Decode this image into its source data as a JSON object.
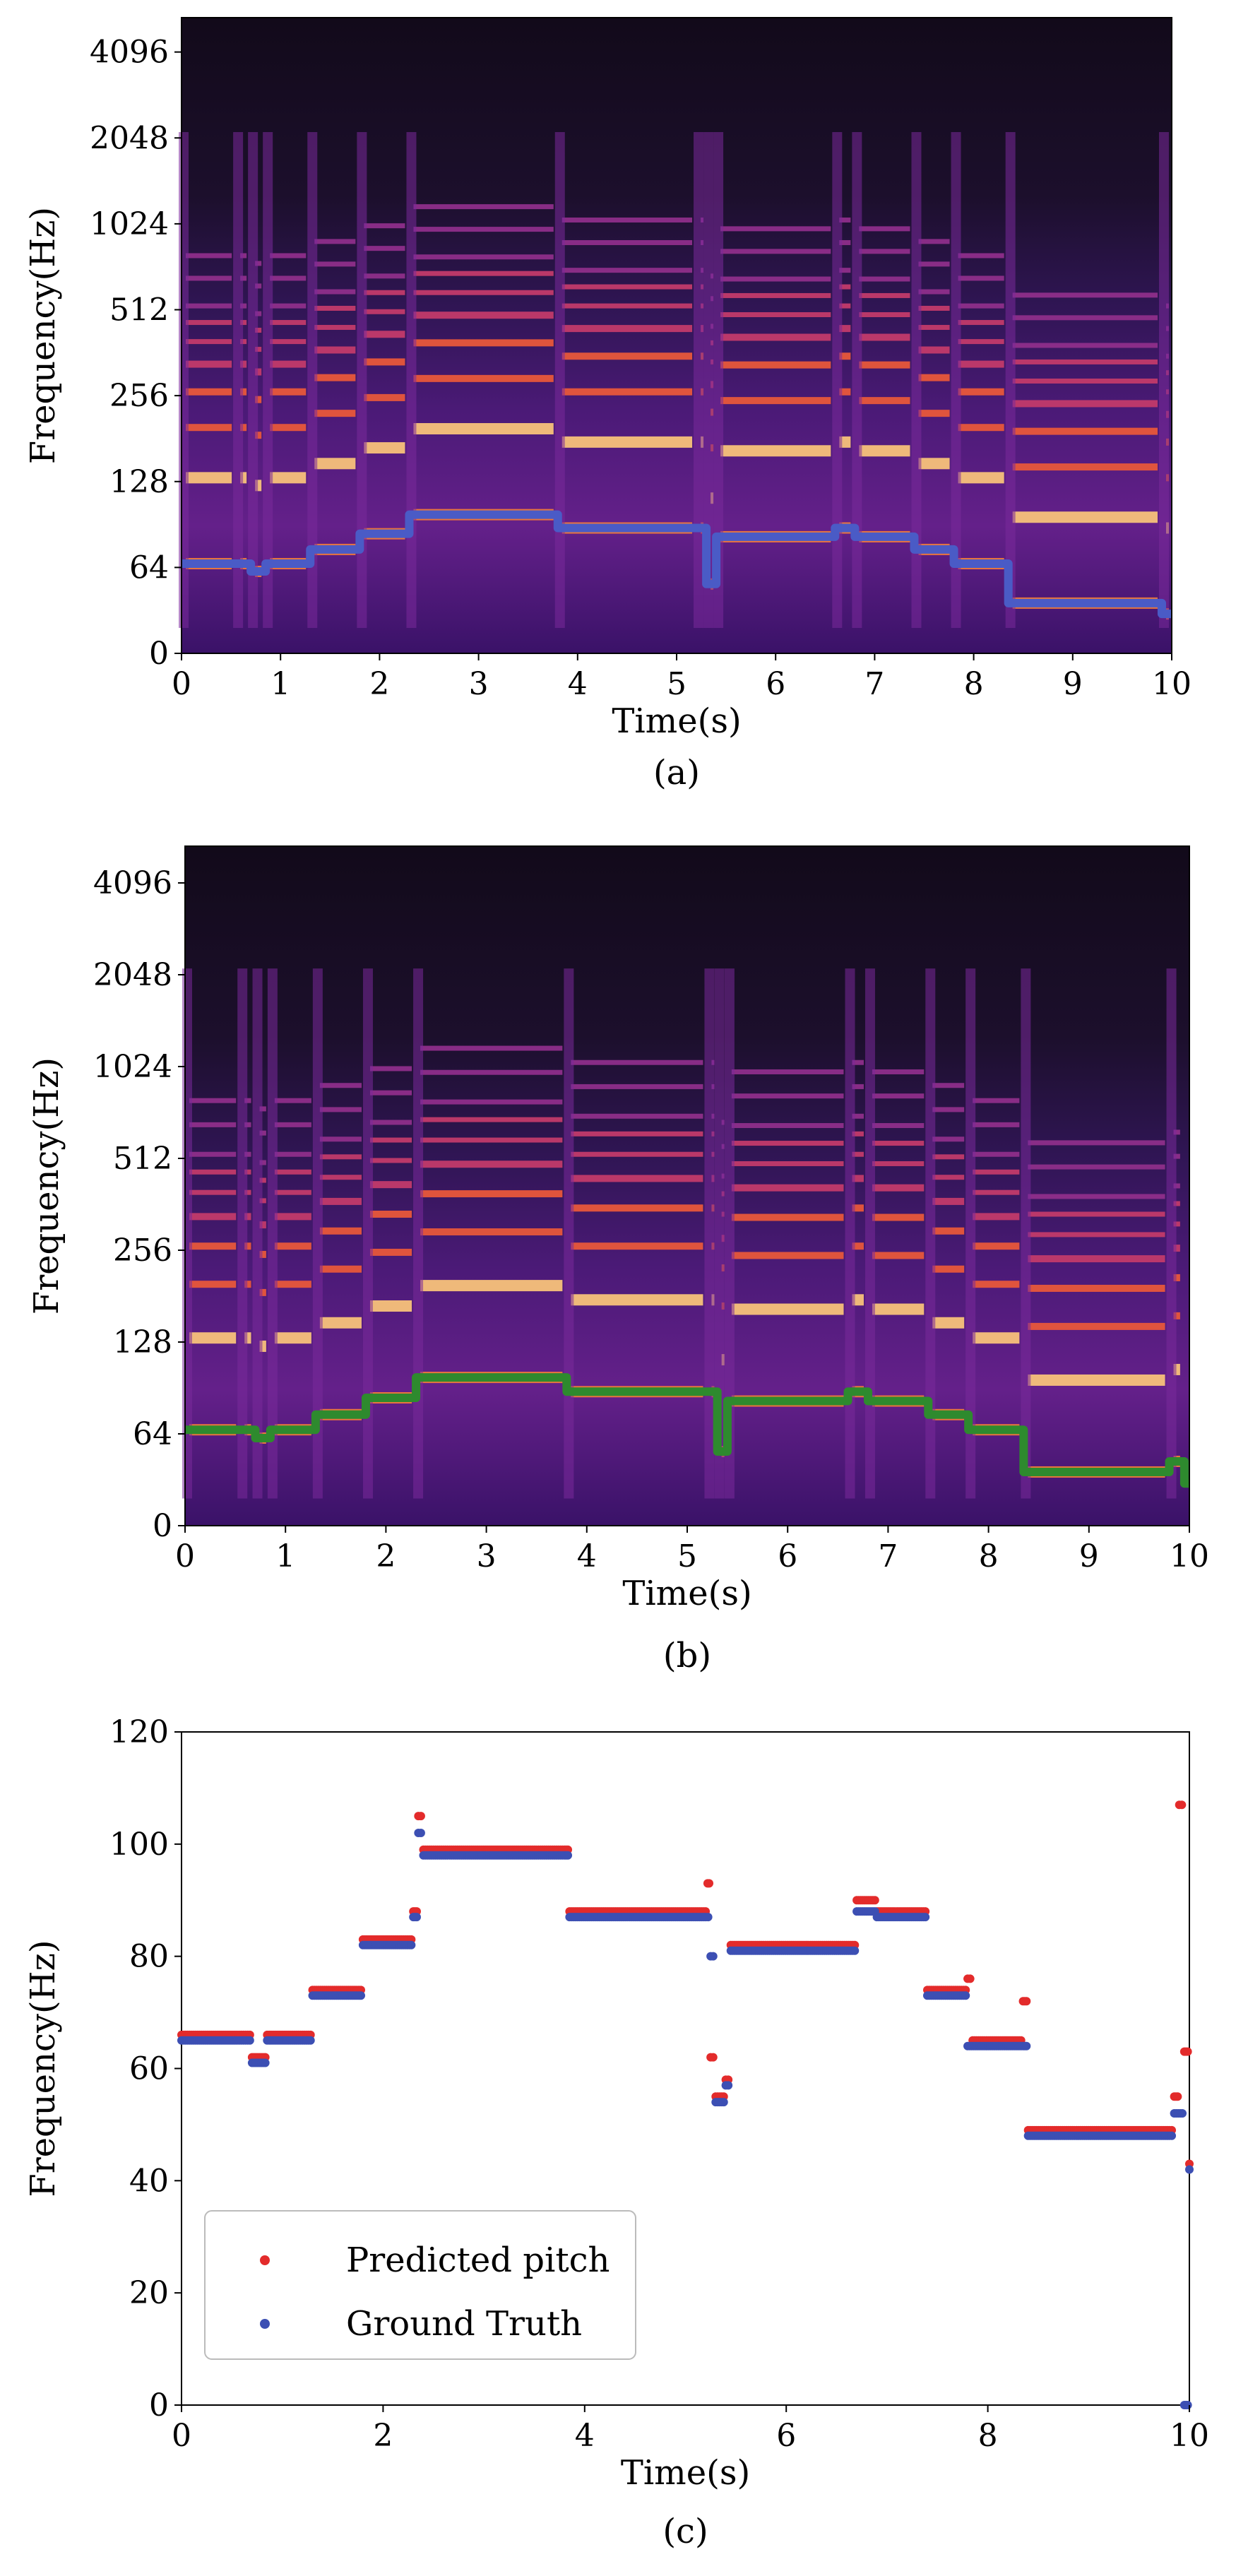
{
  "panels": [
    {
      "caption": "(a)",
      "xlabel": "Time(s)",
      "ylabel": "Frequency(Hz)",
      "xticks": [
        "0",
        "1",
        "2",
        "3",
        "4",
        "5",
        "6",
        "7",
        "8",
        "9",
        "10"
      ],
      "yticks": [
        "0",
        "64",
        "128",
        "256",
        "512",
        "1024",
        "2048",
        "4096"
      ],
      "colors": {
        "pitch": "#4a5bc6",
        "background": "#120a1e"
      }
    },
    {
      "caption": "(b)",
      "xlabel": "Time(s)",
      "ylabel": "Frequency(Hz)",
      "xticks": [
        "0",
        "1",
        "2",
        "3",
        "4",
        "5",
        "6",
        "7",
        "8",
        "9",
        "10"
      ],
      "yticks": [
        "0",
        "64",
        "128",
        "256",
        "512",
        "1024",
        "2048",
        "4096"
      ],
      "colors": {
        "pitch": "#2e8a2e",
        "background": "#120a1e"
      }
    }
  ],
  "chart_data": [
    {
      "type": "heatmap",
      "xlabel": "Time(s)",
      "ylabel": "Frequency(Hz)",
      "xlim": [
        0,
        10
      ],
      "ylim": [
        0,
        8192
      ],
      "yscale": "log2",
      "xticks": [
        0,
        1,
        2,
        3,
        4,
        5,
        6,
        7,
        8,
        9,
        10
      ],
      "yticks": [
        0,
        64,
        128,
        256,
        512,
        1024,
        2048,
        4096
      ],
      "series": [
        {
          "x": [
            0,
            0.55,
            0.7,
            0.85,
            1.3,
            1.8,
            2.3,
            3.8,
            5.2,
            5.3,
            5.4,
            6.6,
            6.8,
            7.4,
            7.8,
            8.35,
            9.9
          ],
          "y": [
            66,
            66,
            62,
            66,
            74,
            84,
            98,
            88,
            88,
            56,
            82,
            88,
            82,
            74,
            66,
            48,
            44
          ]
        }
      ]
    },
    {
      "type": "heatmap",
      "xlabel": "Time(s)",
      "ylabel": "Frequency(Hz)",
      "xlim": [
        0,
        10
      ],
      "ylim": [
        0,
        8192
      ],
      "yscale": "log2",
      "xticks": [
        0,
        1,
        2,
        3,
        4,
        5,
        6,
        7,
        8,
        9,
        10
      ],
      "yticks": [
        0,
        64,
        128,
        256,
        512,
        1024,
        2048,
        4096
      ],
      "series": [
        {
          "x": [
            0,
            0.55,
            0.7,
            0.85,
            1.3,
            1.8,
            2.3,
            3.8,
            5.2,
            5.3,
            5.4,
            6.6,
            6.8,
            7.4,
            7.8,
            8.35,
            9.8,
            9.95
          ],
          "y": [
            66,
            66,
            62,
            66,
            74,
            84,
            98,
            88,
            88,
            56,
            82,
            88,
            82,
            74,
            66,
            48,
            52,
            44
          ]
        }
      ]
    },
    {
      "type": "scatter",
      "caption": "(c)",
      "xlabel": "Time(s)",
      "ylabel": "Frequency(Hz)",
      "xlim": [
        0,
        10
      ],
      "ylim": [
        0,
        120
      ],
      "xticks": [
        0,
        2,
        4,
        6,
        8,
        10
      ],
      "yticks": [
        0,
        20,
        40,
        60,
        80,
        100,
        120
      ],
      "legend_position": "lower-left",
      "series": [
        {
          "name": "Predicted pitch",
          "color": "#e32b2b",
          "x": [
            0,
            0.55,
            0.7,
            0.85,
            1.3,
            1.8,
            2.3,
            2.35,
            2.4,
            3.8,
            3.85,
            5.2,
            5.22,
            5.25,
            5.3,
            5.4,
            5.45,
            6.6,
            6.7,
            6.9,
            7.4,
            7.8,
            7.85,
            8.35,
            8.4,
            9.8,
            9.85,
            9.9,
            9.95,
            10.0
          ],
          "y": [
            66,
            66,
            62,
            66,
            74,
            83,
            88,
            105,
            99,
            99,
            88,
            88,
            93,
            62,
            55,
            58,
            82,
            82,
            90,
            88,
            74,
            76,
            65,
            72,
            49,
            49,
            55,
            107,
            63,
            43
          ]
        },
        {
          "name": "Ground Truth",
          "color": "#3c4fb3",
          "x": [
            0,
            0.55,
            0.7,
            0.85,
            1.3,
            1.8,
            2.3,
            2.35,
            2.4,
            3.8,
            3.85,
            5.2,
            5.25,
            5.3,
            5.4,
            5.45,
            6.6,
            6.7,
            6.9,
            7.4,
            7.8,
            8.35,
            8.4,
            9.8,
            9.85,
            9.95,
            10.0
          ],
          "y": [
            65,
            65,
            61,
            65,
            73,
            82,
            87,
            102,
            98,
            98,
            87,
            87,
            80,
            54,
            57,
            81,
            81,
            88,
            87,
            73,
            64,
            64,
            48,
            48,
            52,
            0,
            42
          ]
        }
      ]
    }
  ],
  "legend": {
    "items": [
      {
        "label": "Predicted pitch",
        "color": "#e32b2b"
      },
      {
        "label": "Ground Truth",
        "color": "#3c4fb3"
      }
    ]
  },
  "caption_c": "(c)"
}
